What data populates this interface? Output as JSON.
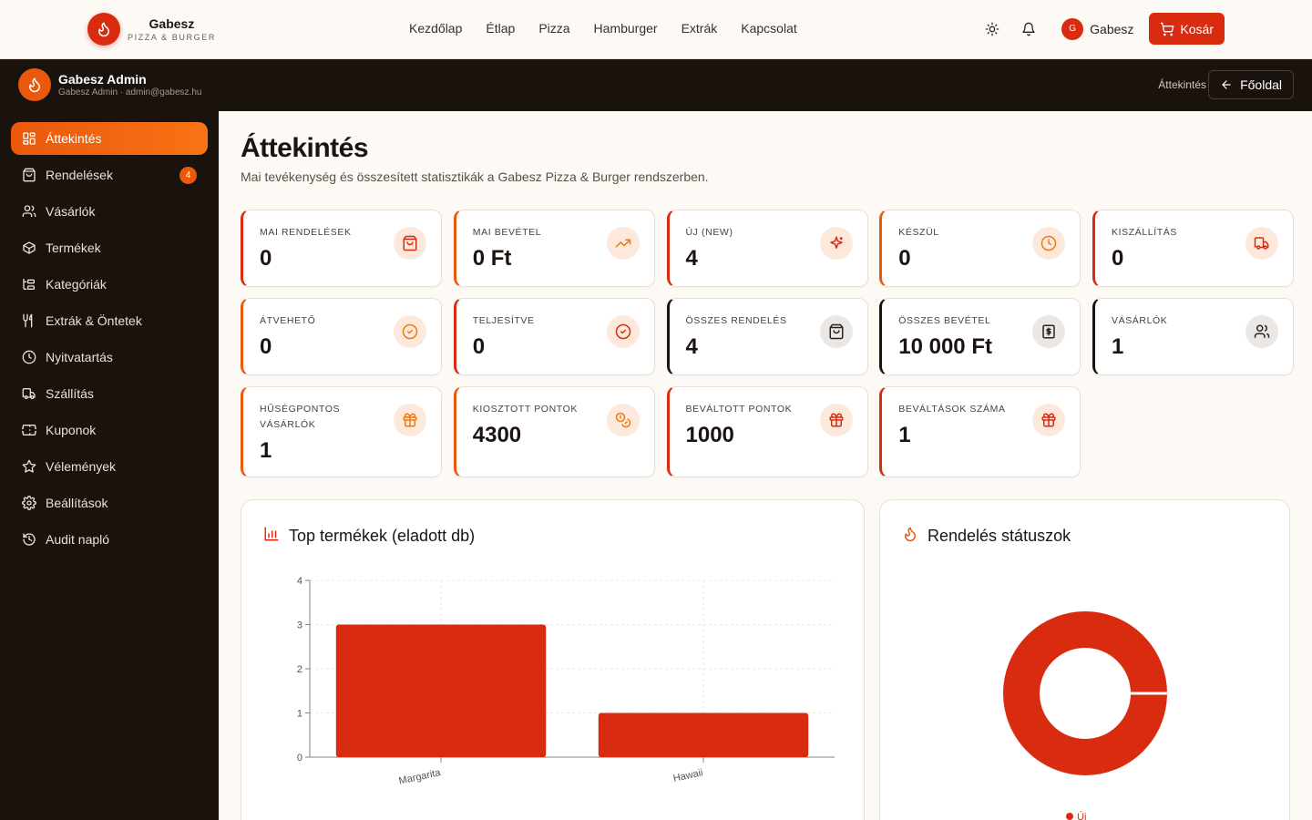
{
  "site": {
    "brand_name": "Gabesz",
    "brand_sub": "PIZZA & BURGER",
    "nav": [
      "Kezdőlap",
      "Étlap",
      "Pizza",
      "Hamburger",
      "Extrák",
      "Kapcsolat"
    ],
    "user_initial": "G",
    "user_name": "Gabesz",
    "cart_label": "Kosár"
  },
  "admin": {
    "title": "Gabesz Admin",
    "subtitle": "Gabesz Admin · admin@gabesz.hu",
    "breadcrumb": "Áttekintés",
    "home_label": "Főoldal"
  },
  "sidebar": {
    "items": [
      {
        "label": "Áttekintés",
        "icon": "dashboard-icon"
      },
      {
        "label": "Rendelések",
        "icon": "shopping-bag-icon",
        "badge": "4"
      },
      {
        "label": "Vásárlók",
        "icon": "users-icon"
      },
      {
        "label": "Termékek",
        "icon": "package-icon"
      },
      {
        "label": "Kategóriák",
        "icon": "tree-icon"
      },
      {
        "label": "Extrák & Öntetek",
        "icon": "utensils-icon"
      },
      {
        "label": "Nyitvatartás",
        "icon": "clock-icon"
      },
      {
        "label": "Szállítás",
        "icon": "truck-icon"
      },
      {
        "label": "Kuponok",
        "icon": "ticket-icon"
      },
      {
        "label": "Vélemények",
        "icon": "star-icon"
      },
      {
        "label": "Beállítások",
        "icon": "gear-icon"
      },
      {
        "label": "Audit napló",
        "icon": "history-icon"
      }
    ]
  },
  "page": {
    "title": "Áttekintés",
    "subtitle": "Mai tevékenység és összesített statisztikák a Gabesz Pizza & Burger rendszerben."
  },
  "stats": [
    {
      "label": "MAI RENDELÉSEK",
      "value": "0",
      "icon": "shopping-bag-icon"
    },
    {
      "label": "MAI BEVÉTEL",
      "value": "0 Ft",
      "icon": "trending-up-icon"
    },
    {
      "label": "ÚJ (NEW)",
      "value": "4",
      "icon": "sparkles-icon"
    },
    {
      "label": "KÉSZÜL",
      "value": "0",
      "icon": "clock-icon"
    },
    {
      "label": "KISZÁLLÍTÁS",
      "value": "0",
      "icon": "truck-icon"
    },
    {
      "label": "ÁTVEHETŐ",
      "value": "0",
      "icon": "check-circle-icon"
    },
    {
      "label": "TELJESÍTVE",
      "value": "0",
      "icon": "check-circle-icon"
    },
    {
      "label": "ÖSSZES RENDELÉS",
      "value": "4",
      "icon": "shopping-bag-icon"
    },
    {
      "label": "ÖSSZES BEVÉTEL",
      "value": "10 000 Ft",
      "icon": "receipt-icon"
    },
    {
      "label": "VÁSÁRLÓK",
      "value": "1",
      "icon": "users-icon"
    },
    {
      "label": "HŰSÉGPONTOS VÁSÁRLÓK",
      "value": "1",
      "icon": "gift-icon"
    },
    {
      "label": "KIOSZTOTT PONTOK",
      "value": "4300",
      "icon": "coins-icon"
    },
    {
      "label": "BEVÁLTOTT PONTOK",
      "value": "1000",
      "icon": "gift-icon"
    },
    {
      "label": "BEVÁLTÁSOK SZÁMA",
      "value": "1",
      "icon": "gift-icon"
    }
  ],
  "colors": {
    "brand_red": "#d92b10",
    "brand_orange": "#ea580c",
    "dark": "#1a120d"
  },
  "panels": {
    "top_products_title": "Top termékek (eladott db)",
    "status_title": "Rendelés státuszok"
  },
  "chart_data": [
    {
      "type": "bar",
      "title": "Top termékek (eladott db)",
      "categories": [
        "Margarita",
        "Hawaii"
      ],
      "values": [
        3,
        1
      ],
      "ylim": [
        0,
        4
      ],
      "yticks": [
        "0",
        "1",
        "2",
        "3",
        "4"
      ],
      "grid": true,
      "color": "#d92b10"
    },
    {
      "type": "pie",
      "title": "Rendelés státuszok",
      "labels": [
        "Új"
      ],
      "values": [
        4
      ],
      "color": "#d92b10",
      "legend": "bottom"
    }
  ]
}
